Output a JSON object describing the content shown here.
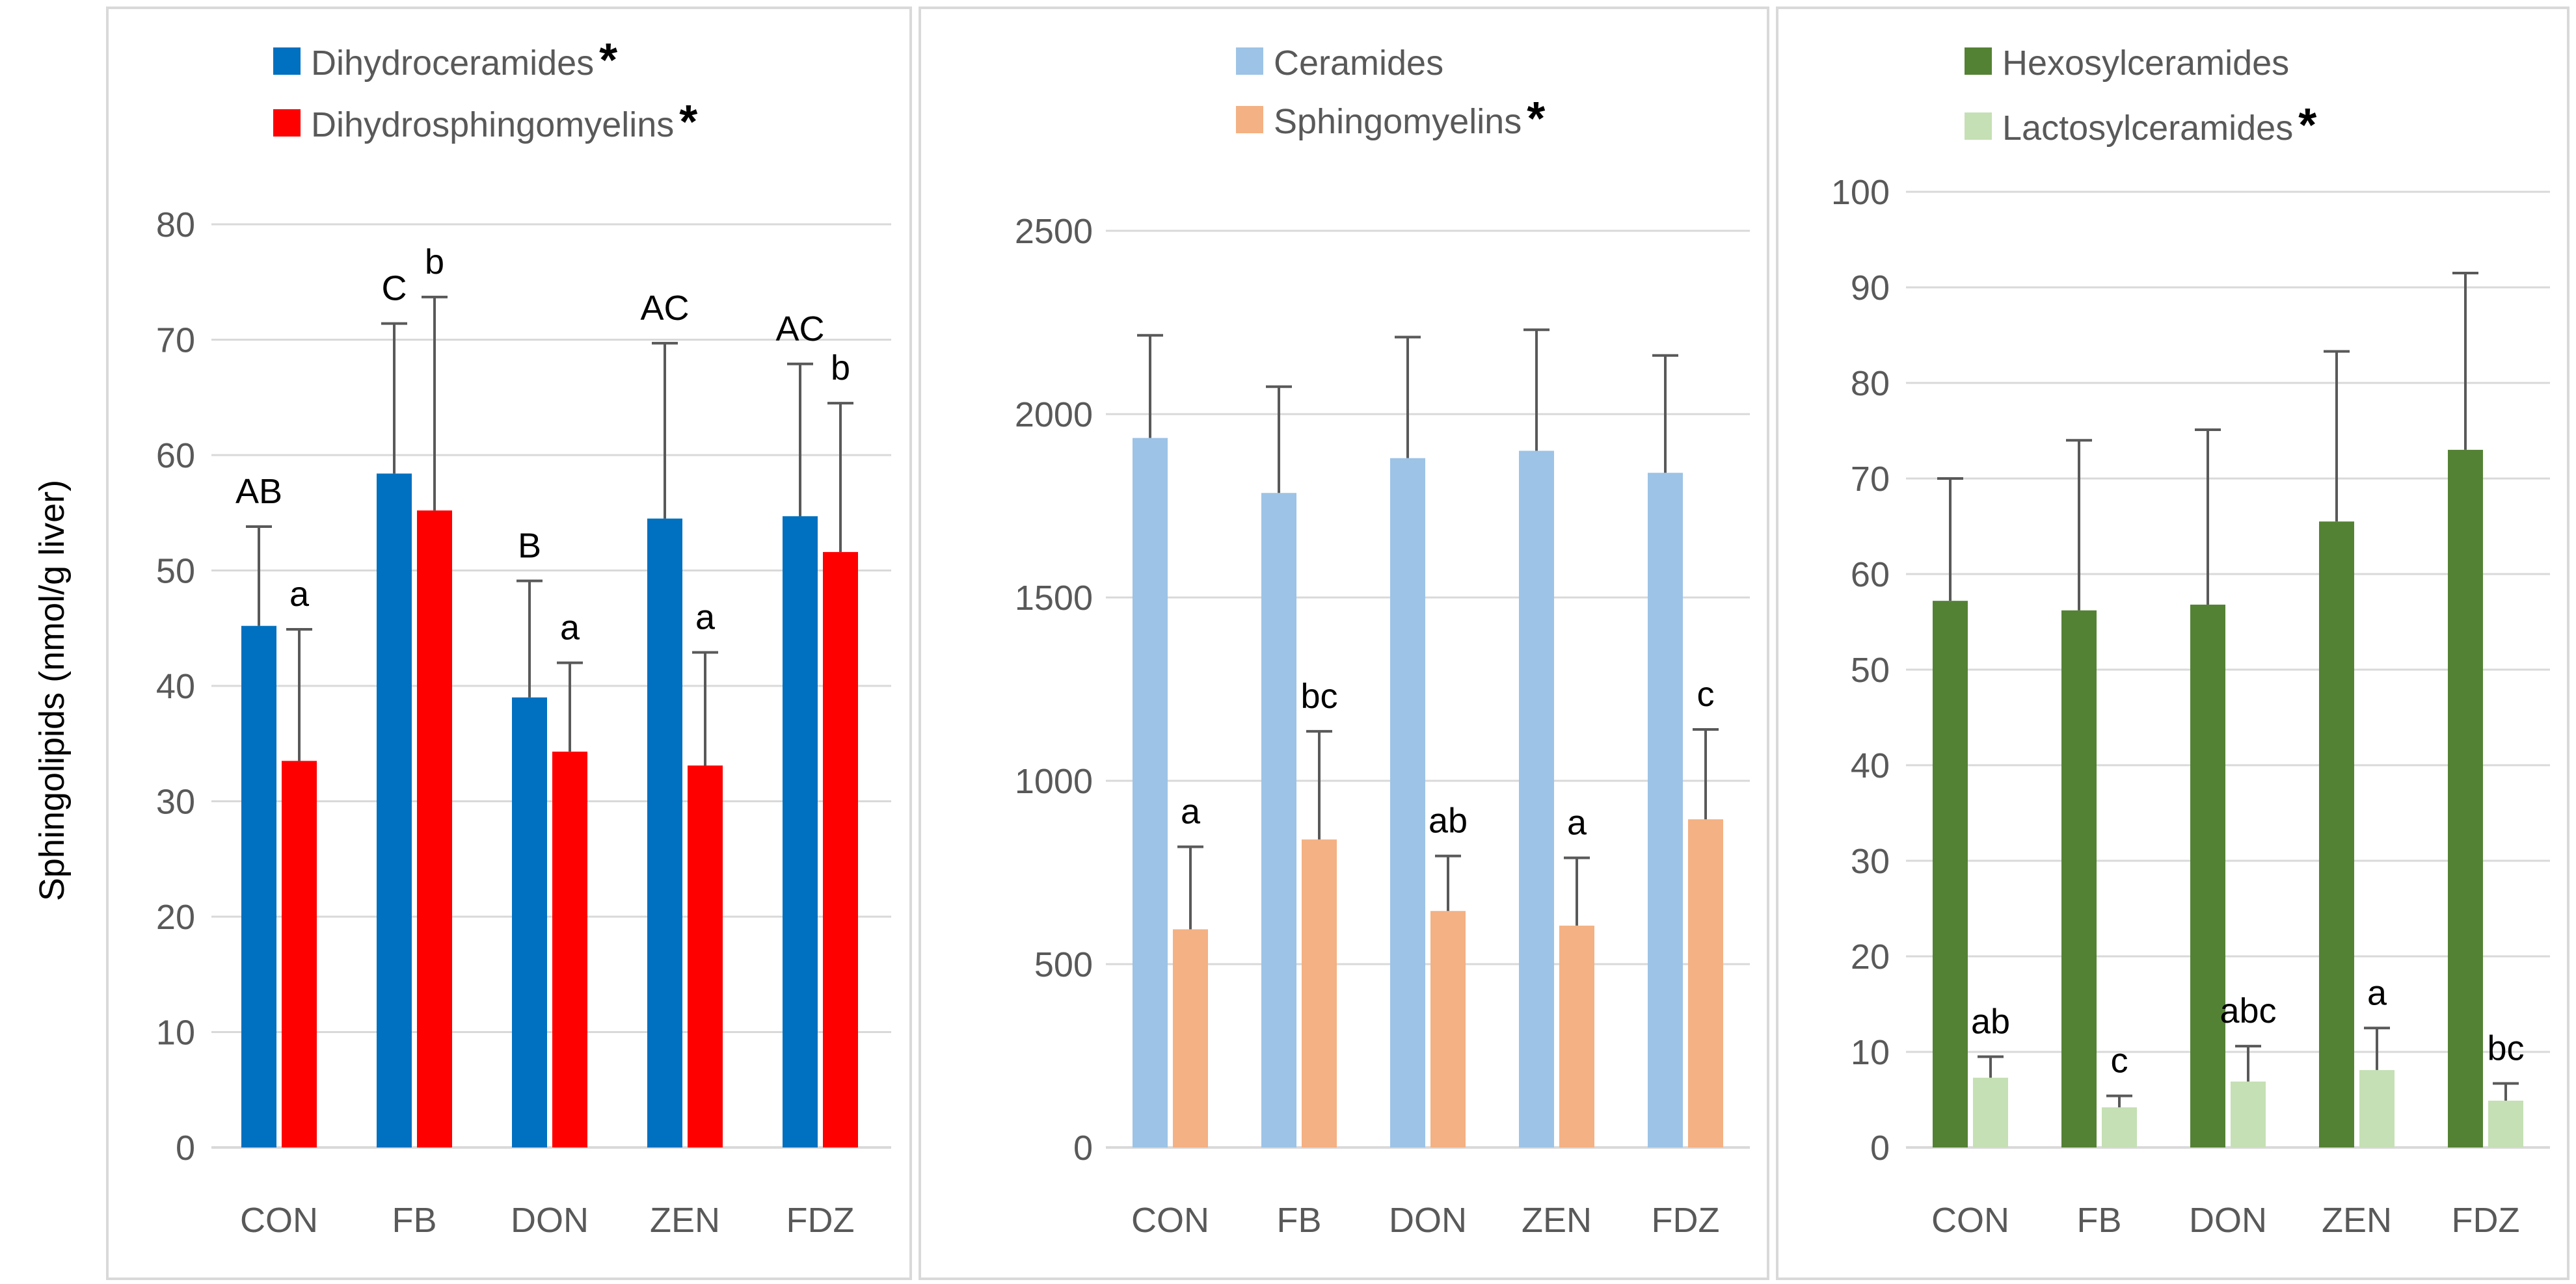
{
  "ylabel": "Sphingolipids (nmol/g liver)",
  "chart_data": [
    {
      "type": "bar",
      "categories": [
        "CON",
        "FB",
        "DON",
        "ZEN",
        "FDZ"
      ],
      "ylim": [
        0,
        80
      ],
      "ytick_labels": [
        "0",
        "10",
        "20",
        "30",
        "40",
        "50",
        "60",
        "70",
        "80"
      ],
      "series": [
        {
          "name": "Dihydroceramides",
          "marker": "*",
          "color": "#0070C0",
          "values": [
            45.2,
            58.4,
            39.0,
            54.5,
            54.7
          ],
          "errors": [
            8.6,
            13.0,
            10.1,
            15.2,
            13.2
          ],
          "letters": [
            "AB",
            "C",
            "B",
            "AC",
            "AC"
          ]
        },
        {
          "name": "Dihydrosphingomyelins",
          "marker": "*",
          "color": "#FF0000",
          "values": [
            33.5,
            55.2,
            34.3,
            33.1,
            51.6
          ],
          "errors": [
            11.4,
            18.5,
            7.7,
            9.8,
            12.9
          ],
          "letters": [
            "a",
            "b",
            "a",
            "a",
            "b"
          ]
        }
      ]
    },
    {
      "type": "bar",
      "categories": [
        "CON",
        "FB",
        "DON",
        "ZEN",
        "FDZ"
      ],
      "ylim": [
        0,
        2500
      ],
      "ytick_labels": [
        "0",
        "500",
        "1000",
        "1500",
        "2000",
        "2500"
      ],
      "series": [
        {
          "name": "Ceramides",
          "marker": "",
          "color": "#9DC3E6",
          "values": [
            1935,
            1785,
            1880,
            1900,
            1840
          ],
          "errors": [
            280,
            290,
            330,
            330,
            320
          ],
          "letters": [
            "",
            "",
            "",
            "",
            ""
          ]
        },
        {
          "name": "Sphingomyelins",
          "marker": "*",
          "color": "#F4B183",
          "values": [
            595,
            840,
            645,
            605,
            895
          ],
          "errors": [
            225,
            295,
            150,
            185,
            245
          ],
          "letters": [
            "a",
            "bc",
            "ab",
            "a",
            "c"
          ]
        }
      ]
    },
    {
      "type": "bar",
      "categories": [
        "CON",
        "FB",
        "DON",
        "ZEN",
        "FDZ"
      ],
      "ylim": [
        0,
        100
      ],
      "ytick_labels": [
        "0",
        "10",
        "20",
        "30",
        "40",
        "50",
        "60",
        "70",
        "80",
        "90",
        "100"
      ],
      "series": [
        {
          "name": "Hexosylceramides",
          "marker": "",
          "color": "#548235",
          "values": [
            57.2,
            56.2,
            56.8,
            65.5,
            73.0
          ],
          "errors": [
            12.8,
            17.8,
            18.3,
            17.8,
            18.5
          ],
          "letters": [
            "",
            "",
            "",
            "",
            ""
          ]
        },
        {
          "name": "Lactosylceramides",
          "marker": "*",
          "color": "#C5E0B4",
          "values": [
            7.3,
            4.2,
            6.9,
            8.1,
            4.9
          ],
          "errors": [
            2.2,
            1.2,
            3.7,
            4.4,
            1.8
          ],
          "letters": [
            "ab",
            "c",
            "abc",
            "a",
            "bc"
          ]
        }
      ]
    }
  ]
}
